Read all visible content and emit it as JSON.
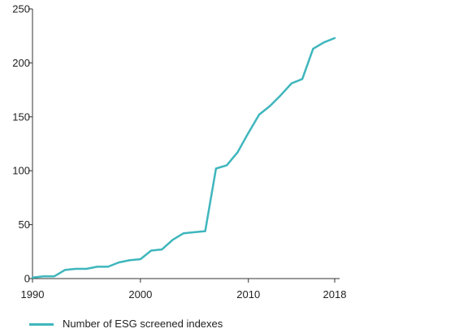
{
  "chart_data": {
    "type": "line",
    "title": "",
    "xlabel": "",
    "ylabel": "",
    "xlim": [
      1990,
      2018
    ],
    "ylim": [
      0,
      250
    ],
    "x_ticks": [
      1990,
      2000,
      2010,
      2018
    ],
    "y_ticks": [
      0,
      50,
      100,
      150,
      200,
      250
    ],
    "grid": false,
    "legend_position": "bottom-left",
    "series": [
      {
        "name": "Number of ESG screened indexes",
        "color": "#3fb6bd",
        "x": [
          1990,
          1991,
          1992,
          1993,
          1994,
          1995,
          1996,
          1997,
          1998,
          1999,
          2000,
          2001,
          2002,
          2003,
          2004,
          2005,
          2006,
          2007,
          2008,
          2009,
          2010,
          2011,
          2012,
          2013,
          2014,
          2015,
          2016,
          2017,
          2018
        ],
        "values": [
          1,
          2,
          2,
          8,
          9,
          9,
          11,
          11,
          15,
          17,
          18,
          26,
          27,
          36,
          42,
          43,
          44,
          102,
          105,
          117,
          135,
          152,
          160,
          170,
          181,
          185,
          213,
          219,
          223
        ]
      }
    ]
  }
}
